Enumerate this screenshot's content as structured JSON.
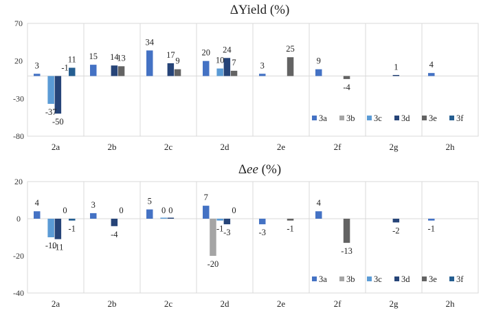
{
  "chart_data": [
    {
      "type": "bar",
      "title": "ΔYield (%)",
      "categories": [
        "2a",
        "2b",
        "2c",
        "2d",
        "2e",
        "2f",
        "2g",
        "2h"
      ],
      "ylim": [
        -80,
        70
      ],
      "yticks": [
        70,
        20,
        -30,
        -80
      ],
      "legend_position": "bottom-right",
      "series": [
        {
          "name": "3a",
          "color": "#4472C4",
          "values": [
            3,
            15,
            34,
            20,
            3,
            9,
            null,
            4
          ]
        },
        {
          "name": "3b",
          "color": "#A5A5A5",
          "values": [
            null,
            null,
            null,
            null,
            null,
            null,
            null,
            null
          ]
        },
        {
          "name": "3c",
          "color": "#5B9BD5",
          "values": [
            -37,
            null,
            null,
            10,
            null,
            null,
            null,
            null
          ]
        },
        {
          "name": "3d",
          "color": "#264478",
          "values": [
            -50,
            14,
            17,
            24,
            null,
            null,
            1,
            null
          ]
        },
        {
          "name": "3e",
          "color": "#636363",
          "values": [
            null,
            13,
            9,
            7,
            25,
            -4,
            null,
            null
          ]
        },
        {
          "name": "3f",
          "color": "#255E91",
          "values": [
            11,
            null,
            null,
            null,
            null,
            null,
            null,
            null
          ]
        }
      ],
      "labels": [
        {
          "cat": 0,
          "text": "3"
        },
        {
          "cat": 0,
          "text": "11"
        },
        {
          "cat": 0,
          "text": "-1"
        },
        {
          "cat": 0,
          "text": "-37"
        },
        {
          "cat": 0,
          "text": "-50"
        },
        {
          "cat": 1,
          "text": "15"
        },
        {
          "cat": 1,
          "text": "14"
        },
        {
          "cat": 1,
          "text": "13"
        },
        {
          "cat": 2,
          "text": "34"
        },
        {
          "cat": 2,
          "text": "17"
        },
        {
          "cat": 2,
          "text": "9"
        },
        {
          "cat": 3,
          "text": "20"
        },
        {
          "cat": 3,
          "text": "10"
        },
        {
          "cat": 3,
          "text": "24"
        },
        {
          "cat": 3,
          "text": "7"
        },
        {
          "cat": 4,
          "text": "3"
        },
        {
          "cat": 4,
          "text": "25"
        },
        {
          "cat": 5,
          "text": "9"
        },
        {
          "cat": 5,
          "text": "-4"
        },
        {
          "cat": 6,
          "text": "1"
        },
        {
          "cat": 7,
          "text": "4"
        }
      ]
    },
    {
      "type": "bar",
      "title": "Δee (%)",
      "title_prefix": "Δ",
      "title_italic": "ee",
      "title_suffix": " (%)",
      "categories": [
        "2a",
        "2b",
        "2c",
        "2d",
        "2e",
        "2f",
        "2g",
        "2h"
      ],
      "ylim": [
        -40,
        20
      ],
      "yticks": [
        20,
        0,
        -20,
        -40
      ],
      "legend_position": "bottom-right",
      "series": [
        {
          "name": "3a",
          "color": "#4472C4",
          "values": [
            4,
            3,
            5,
            7,
            -3,
            4,
            null,
            -1
          ]
        },
        {
          "name": "3b",
          "color": "#A5A5A5",
          "values": [
            null,
            null,
            null,
            -20,
            null,
            null,
            null,
            null
          ]
        },
        {
          "name": "3c",
          "color": "#5B9BD5",
          "values": [
            -10,
            null,
            0,
            -1,
            null,
            null,
            null,
            null
          ]
        },
        {
          "name": "3d",
          "color": "#264478",
          "values": [
            -11,
            -4,
            0,
            -3,
            null,
            null,
            -2,
            null
          ]
        },
        {
          "name": "3e",
          "color": "#636363",
          "values": [
            null,
            null,
            null,
            null,
            -1,
            -13,
            null,
            null
          ]
        },
        {
          "name": "3f",
          "color": "#255E91",
          "values": [
            -1,
            null,
            null,
            null,
            null,
            null,
            null,
            null
          ]
        }
      ],
      "labels": [
        {
          "cat": 0,
          "text": "4"
        },
        {
          "cat": 0,
          "text": "0"
        },
        {
          "cat": 0,
          "text": "-1"
        },
        {
          "cat": 0,
          "text": "-10"
        },
        {
          "cat": 0,
          "text": "-11"
        },
        {
          "cat": 1,
          "text": "3"
        },
        {
          "cat": 1,
          "text": "0"
        },
        {
          "cat": 1,
          "text": "-4"
        },
        {
          "cat": 2,
          "text": "5"
        },
        {
          "cat": 2,
          "text": "0"
        },
        {
          "cat": 2,
          "text": "0"
        },
        {
          "cat": 3,
          "text": "7"
        },
        {
          "cat": 3,
          "text": "0"
        },
        {
          "cat": 3,
          "text": "-1"
        },
        {
          "cat": 3,
          "text": "-3"
        },
        {
          "cat": 3,
          "text": "-20"
        },
        {
          "cat": 4,
          "text": "-3"
        },
        {
          "cat": 4,
          "text": "-1"
        },
        {
          "cat": 5,
          "text": "4"
        },
        {
          "cat": 5,
          "text": "-13"
        },
        {
          "cat": 6,
          "text": "-2"
        },
        {
          "cat": 7,
          "text": "-1"
        }
      ]
    }
  ]
}
